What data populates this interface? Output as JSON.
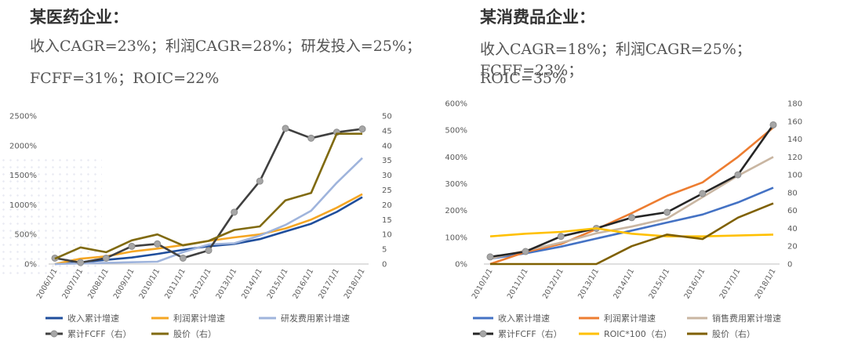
{
  "left": {
    "title": "某医药企业：",
    "line1": "收入CAGR=23%；利润CAGR=28%；研发投入=25%；",
    "line2": "FCFF=31%；ROIC=22%"
  },
  "right": {
    "title": "某消费品企业：",
    "line1": "收入CAGR=18%；利润CAGR=25%；FCFF=23%；",
    "line2": "ROIC=35%"
  },
  "chart_data": [
    {
      "type": "line",
      "categories": [
        "2006/1/1",
        "2007/1/1",
        "2008/1/1",
        "2009/1/1",
        "2010/1/1",
        "2011/1/1",
        "2012/1/1",
        "2013/1/1",
        "2014/1/1",
        "2015/1/1",
        "2016/1/1",
        "2017/1/1",
        "2018/1/1"
      ],
      "ylim_left": [
        0,
        2500
      ],
      "yticks_left": [
        "0%",
        "500%",
        "1000%",
        "1500%",
        "2000%",
        "2500%"
      ],
      "ylim_right": [
        0,
        50
      ],
      "yticks_right": [
        "0",
        "5",
        "10",
        "15",
        "20",
        "25",
        "30",
        "35",
        "40",
        "45",
        "50"
      ],
      "series": [
        {
          "name": "收入累计增速",
          "axis": "left",
          "color": "#1f4e9c",
          "marker": false,
          "values": [
            0,
            30,
            70,
            110,
            170,
            240,
            300,
            340,
            420,
            550,
            680,
            880,
            1130
          ]
        },
        {
          "name": "利润累计增速",
          "axis": "left",
          "color": "#f5a623",
          "marker": false,
          "values": [
            0,
            90,
            130,
            210,
            260,
            320,
            390,
            450,
            500,
            600,
            750,
            950,
            1180
          ]
        },
        {
          "name": "研发费用累计增速",
          "axis": "left",
          "color": "#9fb4dc",
          "marker": false,
          "values": [
            0,
            10,
            20,
            30,
            40,
            200,
            330,
            350,
            480,
            660,
            900,
            1370,
            1790
          ]
        },
        {
          "name": "累计FCFF（右）",
          "axis": "right",
          "color": "#404040",
          "marker": true,
          "values": [
            2,
            0.5,
            2,
            6,
            6.8,
            2,
            4.6,
            17.5,
            28,
            45.8,
            42.5,
            44.5,
            45.6
          ]
        },
        {
          "name": "股价（右）",
          "axis": "right",
          "color": "#806a10",
          "marker": false,
          "values": [
            1.8,
            5.6,
            4,
            8,
            10,
            6.3,
            7.8,
            11.5,
            12.7,
            21.5,
            24,
            44,
            44
          ]
        }
      ],
      "legend": [
        "收入累计增速",
        "利润累计增速",
        "研发费用累计增速",
        "累计FCFF（右）",
        "股价（右）"
      ]
    },
    {
      "type": "line",
      "categories": [
        "2010/1/1",
        "2011/1/1",
        "2012/1/1",
        "2013/1/1",
        "2014/1/1",
        "2015/1/1",
        "2016/1/1",
        "2017/1/1",
        "2018/1/1"
      ],
      "ylim_left": [
        0,
        600
      ],
      "yticks_left": [
        "0%",
        "100%",
        "200%",
        "300%",
        "400%",
        "500%",
        "600%"
      ],
      "ylim_right": [
        0,
        180
      ],
      "yticks_right": [
        "0",
        "20",
        "40",
        "60",
        "80",
        "100",
        "120",
        "140",
        "160",
        "180"
      ],
      "series": [
        {
          "name": "收入累计增速",
          "axis": "left",
          "color": "#4472c4",
          "marker": false,
          "values": [
            20,
            40,
            65,
            95,
            125,
            155,
            185,
            230,
            285
          ]
        },
        {
          "name": "利润累计增速",
          "axis": "left",
          "color": "#ed7d31",
          "marker": false,
          "values": [
            0,
            45,
            75,
            130,
            190,
            255,
            305,
            400,
            510
          ]
        },
        {
          "name": "销售费用累计增速",
          "axis": "left",
          "color": "#c9b6a2",
          "marker": false,
          "values": [
            20,
            50,
            80,
            115,
            140,
            170,
            250,
            330,
            400
          ]
        },
        {
          "name": "累计FCFF（右）",
          "axis": "right",
          "color": "#262626",
          "marker": true,
          "values": [
            8,
            14,
            31,
            40,
            52,
            58,
            79,
            100,
            156
          ]
        },
        {
          "name": "ROIC*100（右）",
          "axis": "right",
          "color": "#ffc000",
          "marker": false,
          "values": [
            31,
            34,
            36,
            40,
            34,
            31,
            31,
            32,
            33
          ]
        },
        {
          "name": "股价（右）",
          "axis": "right",
          "color": "#7f6000",
          "marker": false,
          "values": [
            0,
            0,
            0,
            0,
            20,
            33,
            28,
            52,
            68
          ]
        }
      ],
      "legend": [
        "收入累计增速",
        "利润累计增速",
        "销售费用累计增速",
        "累计FCFF（右）",
        "ROIC*100（右）",
        "股价（右）"
      ]
    }
  ]
}
